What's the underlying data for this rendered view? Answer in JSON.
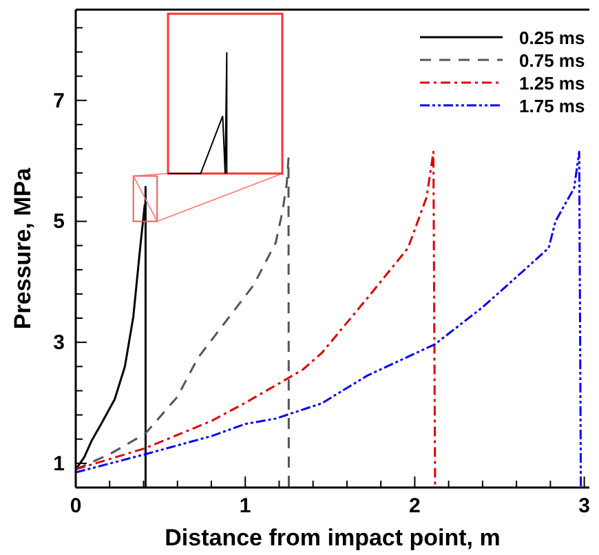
{
  "chart_data": {
    "type": "line",
    "xlabel": "Distance from impact point, m",
    "ylabel": "Pressure, MPa",
    "xlim": [
      0,
      3.03
    ],
    "ylim": [
      0.6,
      8.5
    ],
    "xticks": [
      0,
      {
        "value": 0.2,
        "label": null
      },
      {
        "value": 0.4,
        "label": null
      },
      {
        "value": 0.6,
        "label": null
      },
      {
        "value": 0.8,
        "label": null
      },
      1,
      {
        "value": 1.2,
        "label": null
      },
      {
        "value": 1.4,
        "label": null
      },
      {
        "value": 1.6,
        "label": null
      },
      {
        "value": 1.8,
        "label": null
      },
      2,
      {
        "value": 2.2,
        "label": null
      },
      {
        "value": 2.4,
        "label": null
      },
      {
        "value": 2.6,
        "label": null
      },
      {
        "value": 2.8,
        "label": null
      },
      3
    ],
    "yticks": [
      1,
      {
        "value": 1.4,
        "label": null
      },
      {
        "value": 1.8,
        "label": null
      },
      {
        "value": 2.2,
        "label": null
      },
      {
        "value": 2.6,
        "label": null
      },
      3,
      {
        "value": 3.4,
        "label": null
      },
      {
        "value": 3.8,
        "label": null
      },
      {
        "value": 4.2,
        "label": null
      },
      {
        "value": 4.6,
        "label": null
      },
      5,
      {
        "value": 5.4,
        "label": null
      },
      {
        "value": 5.8,
        "label": null
      },
      {
        "value": 6.2,
        "label": null
      },
      {
        "value": 6.6,
        "label": null
      },
      7,
      {
        "value": 7.4,
        "label": null
      },
      {
        "value": 7.8,
        "label": null
      },
      {
        "value": 8.2,
        "label": null
      }
    ],
    "grid": false,
    "legend": "top right",
    "marker": "none",
    "series": [
      {
        "name": "0.25 ms",
        "color": "#000000",
        "line_style": "solid",
        "x": [
          0,
          0.05,
          0.095,
          0.15,
          0.23,
          0.29,
          0.34,
          0.38,
          0.407,
          0.41,
          0.412,
          0.412
        ],
        "values": [
          0.9,
          1.1,
          1.38,
          1.65,
          2.06,
          2.6,
          3.43,
          4.56,
          5.27,
          5.0,
          5.57,
          0.6
        ]
      },
      {
        "name": "0.75 ms",
        "color": "#555555",
        "line_style": "dashed",
        "x": [
          0,
          0.2,
          0.41,
          0.6,
          0.72,
          0.9,
          1.05,
          1.18,
          1.22,
          1.245,
          1.255,
          1.257
        ],
        "values": [
          0.9,
          1.15,
          1.49,
          2.1,
          2.74,
          3.4,
          3.95,
          4.65,
          5.17,
          5.63,
          6.04,
          0.6
        ]
      },
      {
        "name": "1.25 ms",
        "color": "#e00000",
        "line_style": "dashdot",
        "x": [
          0,
          0.41,
          0.8,
          1.0,
          1.18,
          1.34,
          1.45,
          1.72,
          1.96,
          2.07,
          2.11,
          2.12
        ],
        "values": [
          0.9,
          1.25,
          1.7,
          2.0,
          2.29,
          2.55,
          2.82,
          3.73,
          4.56,
          5.4,
          6.15,
          0.6
        ]
      },
      {
        "name": "1.75 ms",
        "color": "#0000ff",
        "line_style": "dashdotdot",
        "x": [
          0,
          0.41,
          0.8,
          1.0,
          1.18,
          1.45,
          1.72,
          2.12,
          2.4,
          2.64,
          2.79,
          2.83,
          2.94,
          2.97,
          2.98
        ],
        "values": [
          0.85,
          1.15,
          1.45,
          1.65,
          1.74,
          1.99,
          2.45,
          2.97,
          3.58,
          4.18,
          4.56,
          5.0,
          5.55,
          6.15,
          0.6
        ]
      }
    ]
  }
}
